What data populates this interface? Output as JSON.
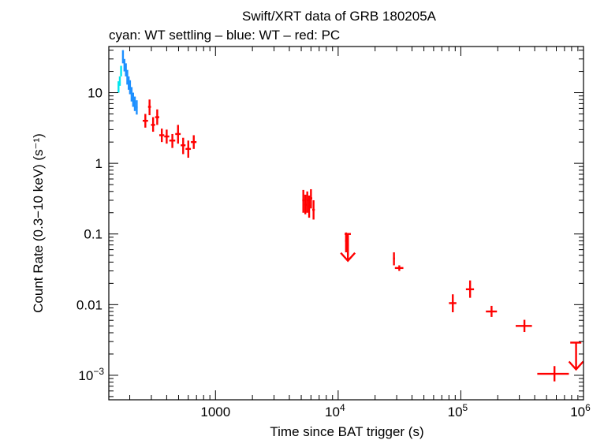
{
  "chart_data": {
    "type": "scatter",
    "title": "Swift/XRT data of GRB 180205A",
    "subtitle": "cyan: WT settling – blue: WT – red: PC",
    "xlabel": "Time since BAT trigger (s)",
    "ylabel": "Count Rate (0.3−10 keV) (s⁻¹)",
    "xscale": "log",
    "yscale": "log",
    "xlim": [
      135,
      1000000
    ],
    "ylim": [
      0.00045,
      45
    ],
    "x_ticks": [
      {
        "value": 1000,
        "base": "1000",
        "exp": ""
      },
      {
        "value": 10000,
        "base": "10",
        "exp": "4"
      },
      {
        "value": 100000,
        "base": "10",
        "exp": "5"
      },
      {
        "value": 1000000,
        "base": "10",
        "exp": "6"
      }
    ],
    "y_ticks": [
      {
        "value": 10,
        "base": "10",
        "exp": ""
      },
      {
        "value": 1,
        "base": "1",
        "exp": ""
      },
      {
        "value": 0.1,
        "base": "0.1",
        "exp": ""
      },
      {
        "value": 0.01,
        "base": "0.01",
        "exp": ""
      },
      {
        "value": 0.001,
        "base": "10",
        "exp": "−3"
      }
    ],
    "series": [
      {
        "name": "WT settling",
        "color": "#00e5ee",
        "points": [
          {
            "x": 162,
            "y": 12,
            "xlo": 160,
            "xhi": 164,
            "ylo": 10,
            "yhi": 14.5
          },
          {
            "x": 166,
            "y": 14.5,
            "xlo": 164,
            "xhi": 168,
            "ylo": 12.5,
            "yhi": 17
          },
          {
            "x": 170,
            "y": 20,
            "xlo": 168,
            "xhi": 172,
            "ylo": 17,
            "yhi": 24
          }
        ]
      },
      {
        "name": "WT",
        "color": "#1e90ff",
        "points": [
          {
            "x": 176,
            "y": 33,
            "xlo": 174,
            "xhi": 178,
            "ylo": 26,
            "yhi": 40
          },
          {
            "x": 181,
            "y": 25,
            "xlo": 179,
            "xhi": 183,
            "ylo": 20,
            "yhi": 30
          },
          {
            "x": 186,
            "y": 21,
            "xlo": 184,
            "xhi": 188,
            "ylo": 17,
            "yhi": 26
          },
          {
            "x": 191,
            "y": 17,
            "xlo": 189,
            "xhi": 193,
            "ylo": 13,
            "yhi": 21
          },
          {
            "x": 196,
            "y": 14,
            "xlo": 194,
            "xhi": 198,
            "ylo": 11,
            "yhi": 17
          },
          {
            "x": 201,
            "y": 12,
            "xlo": 199,
            "xhi": 203,
            "ylo": 9.5,
            "yhi": 15
          },
          {
            "x": 207,
            "y": 9.5,
            "xlo": 204,
            "xhi": 210,
            "ylo": 7.5,
            "yhi": 12
          },
          {
            "x": 213,
            "y": 8,
            "xlo": 210,
            "xhi": 216,
            "ylo": 6.3,
            "yhi": 10
          },
          {
            "x": 220,
            "y": 7,
            "xlo": 217,
            "xhi": 223,
            "ylo": 5.5,
            "yhi": 8.8
          },
          {
            "x": 228,
            "y": 6.2,
            "xlo": 224,
            "xhi": 232,
            "ylo": 4.9,
            "yhi": 7.8
          }
        ]
      },
      {
        "name": "PC",
        "color": "#ff0000",
        "points": [
          {
            "x": 268,
            "y": 4,
            "xlo": 255,
            "xhi": 282,
            "ylo": 3.2,
            "yhi": 5
          },
          {
            "x": 290,
            "y": 6.3,
            "xlo": 282,
            "xhi": 298,
            "ylo": 4.8,
            "yhi": 8
          },
          {
            "x": 310,
            "y": 3.5,
            "xlo": 298,
            "xhi": 322,
            "ylo": 2.8,
            "yhi": 4.5
          },
          {
            "x": 335,
            "y": 4.5,
            "xlo": 322,
            "xhi": 348,
            "ylo": 3.5,
            "yhi": 5.8
          },
          {
            "x": 365,
            "y": 2.5,
            "xlo": 348,
            "xhi": 382,
            "ylo": 2,
            "yhi": 3.1
          },
          {
            "x": 400,
            "y": 2.4,
            "xlo": 382,
            "xhi": 420,
            "ylo": 1.9,
            "yhi": 3
          },
          {
            "x": 445,
            "y": 2.1,
            "xlo": 420,
            "xhi": 470,
            "ylo": 1.65,
            "yhi": 2.6
          },
          {
            "x": 495,
            "y": 2.6,
            "xlo": 470,
            "xhi": 520,
            "ylo": 1.9,
            "yhi": 3.5
          },
          {
            "x": 545,
            "y": 1.8,
            "xlo": 520,
            "xhi": 570,
            "ylo": 1.35,
            "yhi": 2.3
          },
          {
            "x": 600,
            "y": 1.6,
            "xlo": 570,
            "xhi": 630,
            "ylo": 1.2,
            "yhi": 2.1
          },
          {
            "x": 665,
            "y": 2,
            "xlo": 630,
            "xhi": 700,
            "ylo": 1.6,
            "yhi": 2.5
          },
          {
            "x": 5200,
            "y": 0.3,
            "xlo": 5100,
            "xhi": 5300,
            "ylo": 0.2,
            "yhi": 0.42
          },
          {
            "x": 5400,
            "y": 0.26,
            "xlo": 5300,
            "xhi": 5500,
            "ylo": 0.19,
            "yhi": 0.36
          },
          {
            "x": 5600,
            "y": 0.3,
            "xlo": 5500,
            "xhi": 5700,
            "ylo": 0.2,
            "yhi": 0.4
          },
          {
            "x": 5800,
            "y": 0.25,
            "xlo": 5700,
            "xhi": 5900,
            "ylo": 0.17,
            "yhi": 0.35
          },
          {
            "x": 6000,
            "y": 0.32,
            "xlo": 5900,
            "xhi": 6150,
            "ylo": 0.23,
            "yhi": 0.43
          },
          {
            "x": 6300,
            "y": 0.22,
            "xlo": 6150,
            "xhi": 6450,
            "ylo": 0.16,
            "yhi": 0.3
          },
          {
            "x": 11600,
            "y": 0.08,
            "xlo": 11400,
            "xhi": 11800,
            "ylo": 0.055,
            "yhi": 0.105
          },
          {
            "x": 12000,
            "y": 0.07,
            "xlo": 11800,
            "xhi": 12200,
            "ylo": 0.05,
            "yhi": 0.095
          },
          {
            "x": 28500,
            "y": 0.045,
            "xlo": 28000,
            "xhi": 29000,
            "ylo": 0.036,
            "yhi": 0.055
          },
          {
            "x": 31500,
            "y": 0.033,
            "xlo": 29000,
            "xhi": 34000,
            "ylo": 0.03,
            "yhi": 0.036
          },
          {
            "x": 86000,
            "y": 0.0105,
            "xlo": 80000,
            "xhi": 92000,
            "ylo": 0.0078,
            "yhi": 0.014
          },
          {
            "x": 119000,
            "y": 0.0165,
            "xlo": 110000,
            "xhi": 128000,
            "ylo": 0.0125,
            "yhi": 0.022
          },
          {
            "x": 178000,
            "y": 0.008,
            "xlo": 160000,
            "xhi": 197000,
            "ylo": 0.0067,
            "yhi": 0.0096
          },
          {
            "x": 330000,
            "y": 0.005,
            "xlo": 280000,
            "xhi": 380000,
            "ylo": 0.0041,
            "yhi": 0.0061
          },
          {
            "x": 580000,
            "y": 0.00105,
            "xlo": 420000,
            "xhi": 760000,
            "ylo": 0.00082,
            "yhi": 0.00135
          }
        ]
      }
    ],
    "upper_limits": [
      {
        "x": 12000,
        "y": 0.1,
        "xlo": 11300,
        "xhi": 12700,
        "color": "#ff0000"
      },
      {
        "x": 870000,
        "y": 0.0029,
        "xlo": 780000,
        "xhi": 960000,
        "color": "#ff0000"
      }
    ]
  }
}
